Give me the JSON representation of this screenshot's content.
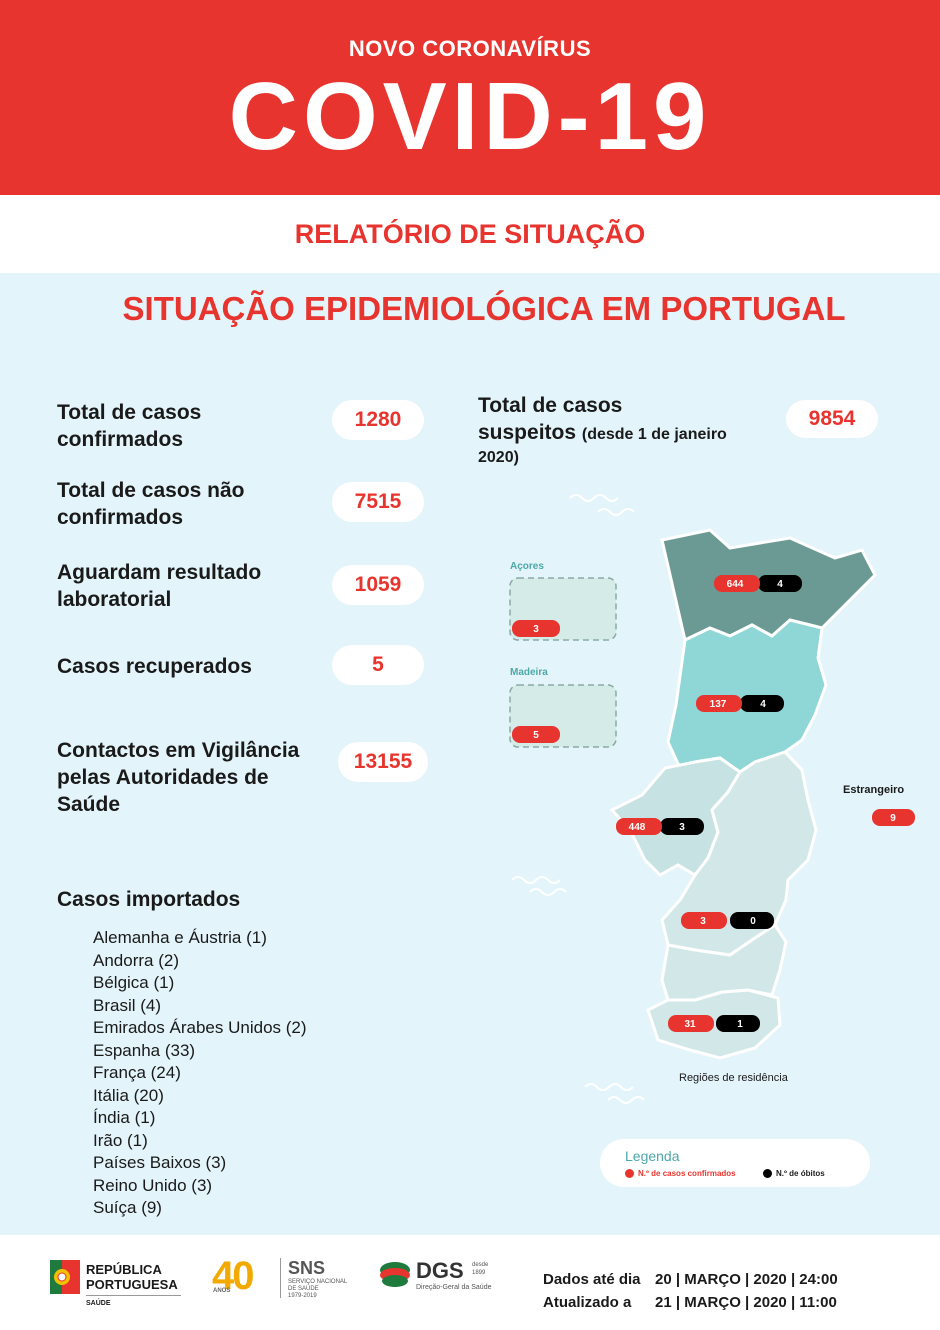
{
  "header": {
    "subtitle": "NOVO CORONAVÍRUS",
    "title": "COVID-19"
  },
  "report_title": "RELATÓRIO DE SITUAÇÃO",
  "section_title": "SITUAÇÃO EPIDEMIOLÓGICA EM PORTUGAL",
  "stats": {
    "confirmed": {
      "label_line1": "Total de casos",
      "label_line2": "confirmados",
      "value": "1280"
    },
    "not_confirmed": {
      "label_line1": "Total de casos não",
      "label_line2": "confirmados",
      "value": "7515"
    },
    "awaiting": {
      "label_line1": "Aguardam resultado",
      "label_line2": "laboratorial",
      "value": "1059"
    },
    "recovered": {
      "label": "Casos recuperados",
      "value": "5"
    },
    "contacts": {
      "label_line1": "Contactos em Vigilância",
      "label_line2": "pelas Autoridades de",
      "label_line3": "Saúde",
      "value": "13155"
    },
    "suspected": {
      "label_line1": "Total de casos",
      "label_line2": "suspeitos",
      "label_note": "(desde 1 de janeiro",
      "label_note2": "2020)",
      "value": "9854"
    }
  },
  "imported": {
    "title": "Casos importados",
    "items": [
      "Alemanha e Áustria (1)",
      "Andorra (2)",
      "Bélgica (1)",
      "Brasil (4)",
      "Emirados Árabes Unidos (2)",
      "Espanha (33)",
      "França (24)",
      "Itália (20)",
      "Índia (1)",
      "Irão (1)",
      "Países Baixos (3)",
      "Reino Unido (3)",
      "Suíça (9)"
    ]
  },
  "map": {
    "acores_label": "Açores",
    "madeira_label": "Madeira",
    "acores_cases": "3",
    "madeira_cases": "5",
    "regions": [
      {
        "cases": "644",
        "deaths": "4"
      },
      {
        "cases": "137",
        "deaths": "4"
      },
      {
        "cases": "448",
        "deaths": "3"
      },
      {
        "cases": "3",
        "deaths": "0"
      },
      {
        "cases": "31",
        "deaths": "1"
      }
    ],
    "estrangeiro_label": "Estrangeiro",
    "estrangeiro_cases": "9",
    "regions_caption": "Regiões de residência"
  },
  "legend": {
    "title": "Legenda",
    "confirmed_label": "N.º de casos confirmados",
    "deaths_label": "N.º de óbitos",
    "confirmed_color": "#e8342e",
    "deaths_color": "#000000"
  },
  "footer": {
    "republica_line1": "REPÚBLICA",
    "republica_line2": "PORTUGUESA",
    "republica_sub": "SAÚDE",
    "sns_number": "40",
    "sns_anos": "ANOS",
    "sns_title": "SNS",
    "sns_line1": "SERVIÇO NACIONAL",
    "sns_line2": "DE SAÚDE",
    "sns_years": "1979-2019",
    "dgs_title": "DGS",
    "dgs_since1": "desde",
    "dgs_since2": "1899",
    "dgs_sub": "Direção-Geral da Saúde",
    "data_label": "Dados até dia",
    "data_value": "20 | MARÇO | 2020 | 24:00",
    "update_label": "Atualizado a",
    "update_value": "21 | MARÇO | 2020 | 11:00"
  },
  "colors": {
    "brand_red": "#e8342e",
    "background": "#e3f4fa",
    "region_north": "#6b9a94",
    "region_center": "#8fd6d6",
    "region_south": "#c7e2e2"
  }
}
